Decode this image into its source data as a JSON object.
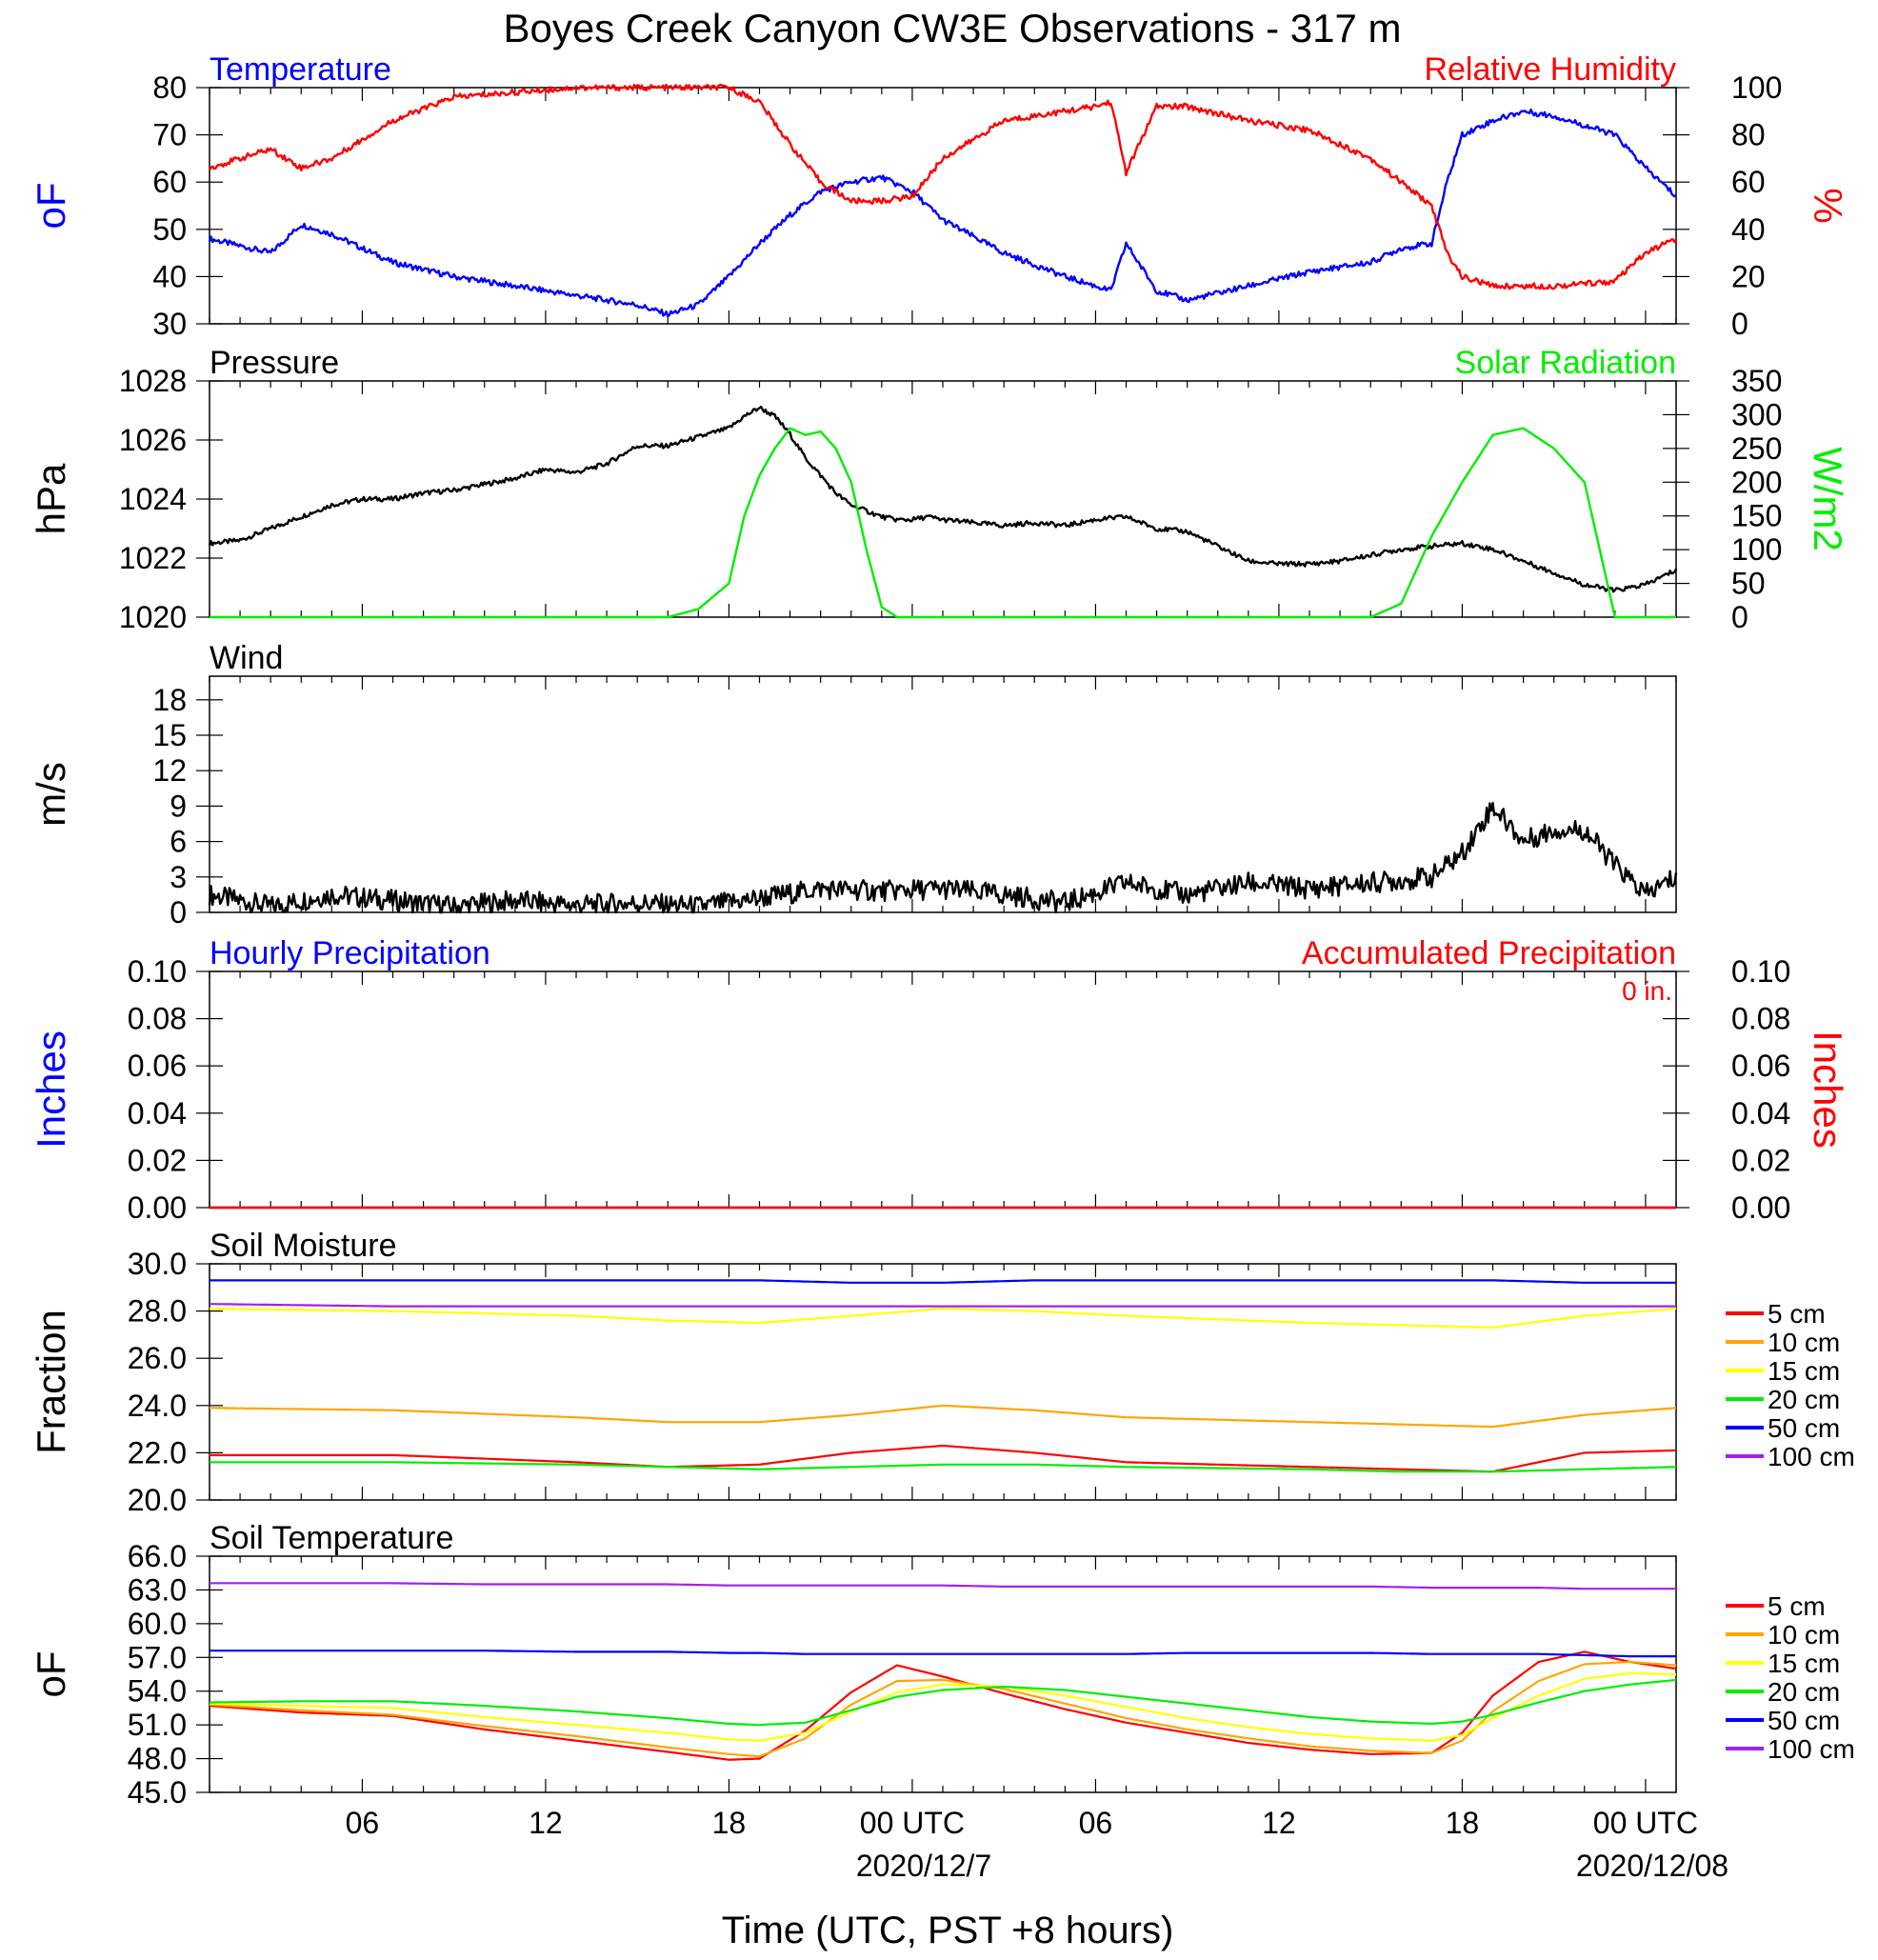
{
  "title": "Boyes Creek Canyon CW3E Observations - 317 m",
  "x_axis": {
    "label": "Time (UTC, PST +8 hours)",
    "ticks": [
      "06",
      "12",
      "18",
      "00 UTC",
      "06",
      "12",
      "18",
      "00 UTC"
    ],
    "dates": [
      "2020/12/7",
      "2020/12/08"
    ]
  },
  "colors": {
    "temperature": "#0000ff",
    "humidity": "#ff0000",
    "pressure": "#000000",
    "solar": "#00ee00",
    "wind": "#000000",
    "wind_barb": "#ff0000",
    "precip_hourly": "#0000ff",
    "precip_accum": "#ff0000",
    "d5": "#ff0000",
    "d10": "#ffa500",
    "d15": "#ffff00",
    "d20": "#00ee00",
    "d50": "#0000ff",
    "d100": "#a020f0"
  },
  "chart_data": [
    {
      "type": "line",
      "panel": "temperature_humidity",
      "left_title": "Temperature",
      "right_title": "Relative Humidity",
      "ylabel_left": "oF",
      "ylabel_right": "%",
      "ylim_left": [
        30,
        80
      ],
      "ylim_right": [
        0,
        100
      ],
      "yticks_left": [
        "80",
        "70",
        "60",
        "50",
        "40",
        "30"
      ],
      "yticks_right": [
        "100",
        "80",
        "60",
        "40",
        "20",
        "0"
      ],
      "x_hours": [
        0,
        2,
        3,
        4,
        6,
        8,
        10,
        12,
        14,
        15,
        16,
        17,
        18,
        19,
        20,
        21,
        22,
        23,
        24,
        26,
        28,
        29,
        29.5,
        30,
        31,
        32,
        34,
        36,
        38,
        39,
        40,
        40.5,
        41,
        42,
        43,
        44,
        46,
        47,
        48
      ],
      "series": [
        {
          "name": "Temperature",
          "axis": "left",
          "values": [
            48,
            45,
            51,
            49,
            43,
            40,
            38,
            36,
            34,
            32,
            34,
            40,
            47,
            53,
            58,
            60,
            61,
            58,
            52,
            45,
            40,
            38,
            37,
            47,
            37,
            35,
            38,
            41,
            43,
            46,
            47,
            60,
            70,
            73,
            75,
            74,
            70,
            63,
            57
          ]
        },
        {
          "name": "Relative Humidity",
          "axis": "left",
          "values": [
            63,
            67,
            63,
            65,
            73,
            78,
            79,
            80,
            80,
            80,
            80,
            80,
            77,
            68,
            60,
            56,
            56,
            57,
            65,
            73,
            75,
            76,
            77,
            62,
            76,
            76,
            73,
            71,
            65,
            60,
            55,
            45,
            40,
            38,
            38,
            38,
            39,
            45,
            48
          ]
        }
      ]
    },
    {
      "type": "line",
      "panel": "pressure_solar",
      "left_title": "Pressure",
      "right_title": "Solar Radiation",
      "ylabel_left": "hPa",
      "ylabel_right": "W/m2",
      "ylim_left": [
        1020,
        1028
      ],
      "ylim_right": [
        0,
        350
      ],
      "yticks_left": [
        "1028",
        "1026",
        "1024",
        "1022",
        "1020"
      ],
      "yticks_right": [
        "350",
        "300",
        "250",
        "200",
        "150",
        "100",
        "50",
        "0"
      ],
      "x_hours": [
        0,
        1,
        2,
        3,
        4,
        5,
        6,
        7,
        8,
        9,
        10,
        11,
        12,
        13,
        14,
        15,
        16,
        17,
        17.5,
        18,
        18.5,
        19,
        19.5,
        20,
        20.5,
        21,
        21.5,
        22,
        22.5,
        23,
        23.5,
        24,
        25,
        26,
        27,
        28,
        29,
        30,
        31,
        32,
        33,
        34,
        35,
        36,
        37,
        38,
        39,
        40,
        41,
        42,
        43,
        44,
        45,
        46,
        47,
        48
      ],
      "series": [
        {
          "name": "Pressure",
          "axis": "left",
          "values": [
            1022.5,
            1022.6,
            1023.0,
            1023.4,
            1023.8,
            1024.0,
            1024.0,
            1024.2,
            1024.3,
            1024.5,
            1024.7,
            1025.0,
            1024.9,
            1025.2,
            1025.8,
            1025.8,
            1026.1,
            1026.4,
            1026.8,
            1027.1,
            1026.8,
            1026.2,
            1025.4,
            1024.8,
            1024.2,
            1023.8,
            1023.6,
            1023.4,
            1023.3,
            1023.3,
            1023.4,
            1023.3,
            1023.2,
            1023.1,
            1023.2,
            1023.1,
            1023.3,
            1023.4,
            1023.0,
            1022.9,
            1022.4,
            1021.9,
            1021.8,
            1021.8,
            1021.9,
            1022.1,
            1022.3,
            1022.4,
            1022.5,
            1022.3,
            1021.9,
            1021.5,
            1021.1,
            1020.9,
            1021.1,
            1021.6
          ]
        },
        {
          "name": "Solar Radiation",
          "axis": "right",
          "values": [
            0,
            0,
            0,
            0,
            0,
            0,
            0,
            0,
            0,
            0,
            0,
            0,
            0,
            0,
            0,
            0,
            12,
            50,
            150,
            210,
            250,
            280,
            270,
            275,
            250,
            200,
            100,
            15,
            0,
            0,
            0,
            0,
            0,
            0,
            0,
            0,
            0,
            0,
            0,
            0,
            0,
            0,
            0,
            0,
            0,
            0,
            20,
            120,
            200,
            270,
            280,
            250,
            200,
            0,
            0,
            0
          ]
        }
      ]
    },
    {
      "type": "line",
      "panel": "wind",
      "left_title": "Wind",
      "ylabel_left": "m/s",
      "ylim_left": [
        0,
        20
      ],
      "yticks_left": [
        "18",
        "15",
        "12",
        "9",
        "6",
        "3",
        "0"
      ],
      "x_hours": [
        0,
        2,
        4,
        6,
        8,
        10,
        12,
        14,
        16,
        18,
        20,
        22,
        24,
        26,
        28,
        30,
        31,
        32,
        34,
        36,
        38,
        40,
        41,
        42,
        43,
        44,
        45,
        46,
        47,
        48
      ],
      "series": [
        {
          "name": "Wind",
          "axis": "left",
          "values": [
            1.5,
            0.5,
            1.5,
            1.0,
            0.5,
            1.0,
            0.6,
            0.8,
            0.5,
            1.2,
            2.0,
            1.8,
            2.0,
            1.5,
            0.8,
            2.5,
            2.0,
            1.5,
            2.5,
            2.0,
            2.5,
            3.0,
            5.0,
            9.0,
            6.0,
            7.0,
            7.0,
            4.0,
            1.5,
            3.0
          ]
        }
      ]
    },
    {
      "type": "line",
      "panel": "precipitation",
      "left_title": "Hourly Precipitation",
      "right_title": "Accumulated Precipitation",
      "annotation": "0 in.",
      "ylabel_left": "Inches",
      "ylabel_right": "Inches",
      "ylim_left": [
        0,
        0.1
      ],
      "ylim_right": [
        0,
        0.1
      ],
      "yticks_left": [
        "0.10",
        "0.08",
        "0.06",
        "0.04",
        "0.02",
        "0.00"
      ],
      "yticks_right": [
        "0.10",
        "0.08",
        "0.06",
        "0.04",
        "0.02",
        "0.00"
      ],
      "x_hours": [
        0,
        48
      ],
      "series": [
        {
          "name": "Hourly Precipitation",
          "axis": "left",
          "values": [
            0,
            0
          ]
        },
        {
          "name": "Accumulated Precipitation",
          "axis": "right",
          "values": [
            0,
            0
          ]
        }
      ]
    },
    {
      "type": "line",
      "panel": "soil_moisture",
      "left_title": "Soil Moisture",
      "ylabel_left": "Fraction",
      "ylim_left": [
        20,
        30
      ],
      "yticks_left": [
        "30.0",
        "28.0",
        "26.0",
        "24.0",
        "22.0",
        "20.0"
      ],
      "x_hours": [
        0,
        6,
        12,
        15,
        18,
        21,
        24,
        27,
        30,
        36,
        39,
        42,
        45,
        48
      ],
      "series": [
        {
          "name": "5 cm",
          "values": [
            21.9,
            21.9,
            21.6,
            21.4,
            21.5,
            22.0,
            22.3,
            22.0,
            21.6,
            21.4,
            21.3,
            21.2,
            22.0,
            22.1
          ]
        },
        {
          "name": "10 cm",
          "values": [
            23.9,
            23.8,
            23.5,
            23.3,
            23.3,
            23.6,
            24.0,
            23.8,
            23.5,
            23.3,
            23.2,
            23.1,
            23.6,
            23.9
          ]
        },
        {
          "name": "15 cm",
          "values": [
            28.1,
            28.0,
            27.8,
            27.6,
            27.5,
            27.8,
            28.1,
            28.0,
            27.8,
            27.5,
            27.4,
            27.3,
            27.8,
            28.1
          ]
        },
        {
          "name": "20 cm",
          "values": [
            21.6,
            21.6,
            21.5,
            21.4,
            21.3,
            21.4,
            21.5,
            21.5,
            21.4,
            21.3,
            21.2,
            21.2,
            21.3,
            21.4
          ]
        },
        {
          "name": "50 cm",
          "values": [
            29.3,
            29.3,
            29.3,
            29.3,
            29.3,
            29.2,
            29.2,
            29.3,
            29.3,
            29.3,
            29.3,
            29.3,
            29.2,
            29.2
          ]
        },
        {
          "name": "100 cm",
          "values": [
            28.3,
            28.2,
            28.2,
            28.2,
            28.2,
            28.2,
            28.2,
            28.2,
            28.2,
            28.2,
            28.2,
            28.2,
            28.2,
            28.2
          ]
        }
      ],
      "legend": "right"
    },
    {
      "type": "line",
      "panel": "soil_temperature",
      "left_title": "Soil Temperature",
      "ylabel_left": "oF",
      "ylim_left": [
        45,
        66
      ],
      "yticks_left": [
        "66.0",
        "63.0",
        "60.0",
        "57.0",
        "54.0",
        "51.0",
        "48.0",
        "45.0"
      ],
      "x_hours": [
        0,
        3,
        6,
        9,
        12,
        15,
        17,
        18,
        19.5,
        21,
        22.5,
        24,
        26,
        28,
        30,
        32,
        34,
        36,
        38,
        40,
        41,
        42,
        43.5,
        45,
        46.5,
        48
      ],
      "series": [
        {
          "name": "5 cm",
          "values": [
            52.7,
            52.1,
            51.8,
            50.6,
            49.6,
            48.6,
            47.9,
            48.0,
            50.5,
            53.9,
            56.3,
            55.3,
            53.8,
            52.4,
            51.2,
            50.3,
            49.4,
            48.8,
            48.4,
            48.5,
            50.3,
            53.6,
            56.6,
            57.5,
            56.6,
            56.0
          ]
        },
        {
          "name": "10 cm",
          "values": [
            52.8,
            52.3,
            51.9,
            50.9,
            50.0,
            49.0,
            48.4,
            48.2,
            49.8,
            52.8,
            54.9,
            55.0,
            54.2,
            52.9,
            51.6,
            50.6,
            49.8,
            49.1,
            48.7,
            48.5,
            49.6,
            52.2,
            54.9,
            56.4,
            56.6,
            56.3
          ]
        },
        {
          "name": "15 cm",
          "values": [
            52.9,
            52.7,
            52.5,
            51.7,
            51.0,
            50.3,
            49.7,
            49.6,
            50.3,
            52.2,
            53.9,
            54.6,
            54.4,
            53.6,
            52.6,
            51.6,
            50.8,
            50.2,
            49.8,
            49.6,
            50.1,
            51.6,
            53.6,
            55.1,
            55.6,
            55.5
          ]
        },
        {
          "name": "20 cm",
          "values": [
            53.0,
            53.1,
            53.1,
            52.7,
            52.2,
            51.6,
            51.1,
            51.0,
            51.2,
            52.3,
            53.5,
            54.1,
            54.4,
            54.1,
            53.5,
            52.9,
            52.3,
            51.7,
            51.3,
            51.1,
            51.3,
            51.9,
            53.0,
            54.0,
            54.6,
            55.0
          ]
        },
        {
          "name": "50 cm",
          "values": [
            57.6,
            57.6,
            57.6,
            57.6,
            57.5,
            57.5,
            57.4,
            57.4,
            57.3,
            57.3,
            57.3,
            57.3,
            57.3,
            57.3,
            57.3,
            57.4,
            57.4,
            57.4,
            57.4,
            57.3,
            57.3,
            57.3,
            57.3,
            57.2,
            57.1,
            57.1
          ]
        },
        {
          "name": "100 cm",
          "values": [
            63.6,
            63.6,
            63.6,
            63.5,
            63.5,
            63.5,
            63.4,
            63.4,
            63.4,
            63.4,
            63.4,
            63.4,
            63.3,
            63.3,
            63.3,
            63.3,
            63.3,
            63.3,
            63.3,
            63.2,
            63.2,
            63.2,
            63.2,
            63.1,
            63.1,
            63.1
          ]
        }
      ],
      "legend": "right"
    }
  ]
}
